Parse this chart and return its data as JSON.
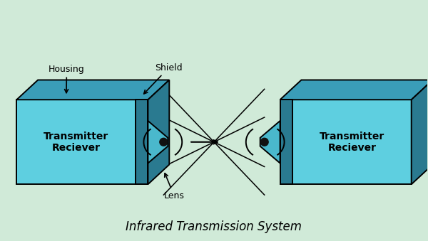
{
  "bg_color": "#d0ead8",
  "title": "Infrared Transmission System",
  "title_fontsize": 12,
  "body_color": "#5ecfe0",
  "top_color": "#3a9db8",
  "dark_color": "#2a7a90",
  "shield_color": "#4ab8cc",
  "outline_color": "#000000",
  "lens_dot_color": "#111111",
  "label_housing": "Housing",
  "label_shield": "Shield",
  "label_lens": "Lens",
  "label_tr": "Transmitter\nReciever"
}
